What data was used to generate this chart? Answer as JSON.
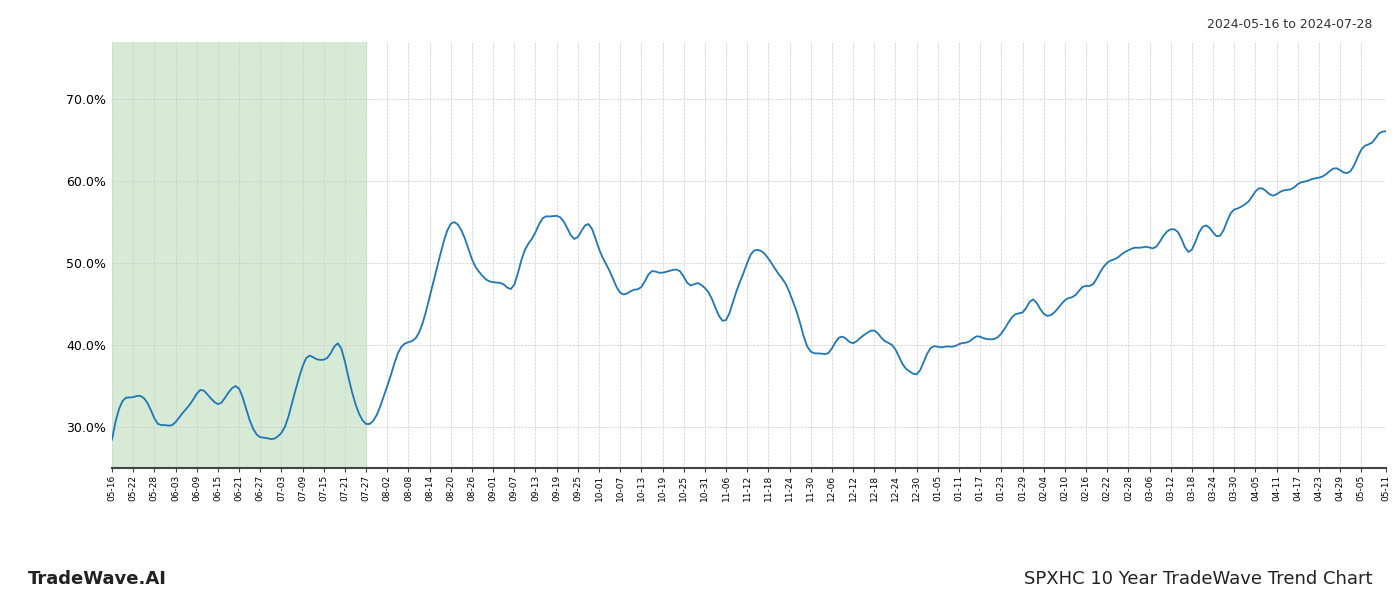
{
  "title_top_right": "2024-05-16 to 2024-07-28",
  "title_bottom_left": "TradeWave.AI",
  "title_bottom_right": "SPXHC 10 Year TradeWave Trend Chart",
  "line_color": "#1f77b4",
  "line_width": 1.3,
  "bg_color": "#ffffff",
  "grid_color": "#cccccc",
  "highlight_color": "#d6ead6",
  "ylim": [
    25.0,
    77.0
  ],
  "yticks": [
    30.0,
    40.0,
    50.0,
    60.0,
    70.0
  ],
  "x_labels": [
    "05-16",
    "05-22",
    "05-28",
    "06-03",
    "06-09",
    "06-15",
    "06-21",
    "06-27",
    "07-03",
    "07-09",
    "07-15",
    "07-21",
    "07-27",
    "08-02",
    "08-08",
    "08-14",
    "08-20",
    "08-26",
    "09-01",
    "09-07",
    "09-13",
    "09-19",
    "09-25",
    "10-01",
    "10-07",
    "10-13",
    "10-19",
    "10-25",
    "10-31",
    "11-06",
    "11-12",
    "11-18",
    "11-24",
    "11-30",
    "12-06",
    "12-12",
    "12-18",
    "12-24",
    "12-30",
    "01-05",
    "01-11",
    "01-17",
    "01-23",
    "01-29",
    "02-04",
    "02-10",
    "02-16",
    "02-22",
    "02-28",
    "03-06",
    "03-12",
    "03-18",
    "03-24",
    "03-30",
    "04-05",
    "04-11",
    "04-17",
    "04-23",
    "04-29",
    "05-05",
    "05-11"
  ],
  "segment_dates": [
    "2023-05-16",
    "2023-05-22",
    "2023-05-28",
    "2023-06-03",
    "2023-06-09",
    "2023-06-15",
    "2023-06-21",
    "2023-06-27",
    "2023-07-03",
    "2023-07-09",
    "2023-07-15",
    "2023-07-21",
    "2023-07-27",
    "2023-08-02",
    "2023-08-08",
    "2023-08-14",
    "2023-08-20",
    "2023-08-26",
    "2023-09-01",
    "2023-09-07",
    "2023-09-13",
    "2023-09-19",
    "2023-09-25",
    "2023-10-01",
    "2023-10-07",
    "2023-10-13",
    "2023-10-19",
    "2023-10-25",
    "2023-10-31",
    "2023-11-06",
    "2023-11-12",
    "2023-11-18",
    "2023-11-24",
    "2023-11-30",
    "2023-12-06",
    "2023-12-12",
    "2023-12-18",
    "2023-12-24",
    "2023-12-30",
    "2024-01-05",
    "2024-01-11",
    "2024-01-17",
    "2024-01-23",
    "2024-01-29",
    "2024-02-04",
    "2024-02-10",
    "2024-02-16",
    "2024-02-22",
    "2024-02-28",
    "2024-03-06",
    "2024-03-12",
    "2024-03-18",
    "2024-03-24",
    "2024-03-30",
    "2024-04-05",
    "2024-04-11",
    "2024-04-17",
    "2024-04-23",
    "2024-04-29",
    "2024-05-05",
    "2024-05-11"
  ],
  "segment_values": [
    28.0,
    34.5,
    31.5,
    31.0,
    35.0,
    34.0,
    34.5,
    29.0,
    30.0,
    37.0,
    38.5,
    36.5,
    29.5,
    35.0,
    40.0,
    46.5,
    53.5,
    51.5,
    48.0,
    48.5,
    53.5,
    56.5,
    53.0,
    52.5,
    47.5,
    46.0,
    48.5,
    47.0,
    45.5,
    44.0,
    50.5,
    51.0,
    47.0,
    40.5,
    39.5,
    41.0,
    41.5,
    40.0,
    36.5,
    39.5,
    41.5,
    41.5,
    43.0,
    43.5,
    44.5,
    46.0,
    48.0,
    50.5,
    51.0,
    52.0,
    52.5,
    53.0,
    55.0,
    57.0,
    58.5,
    59.0,
    60.0,
    61.5,
    62.0,
    63.0,
    65.0
  ],
  "noise_seed": 77,
  "noise_amplitude": 1.8,
  "noise_sigma": 1.5
}
